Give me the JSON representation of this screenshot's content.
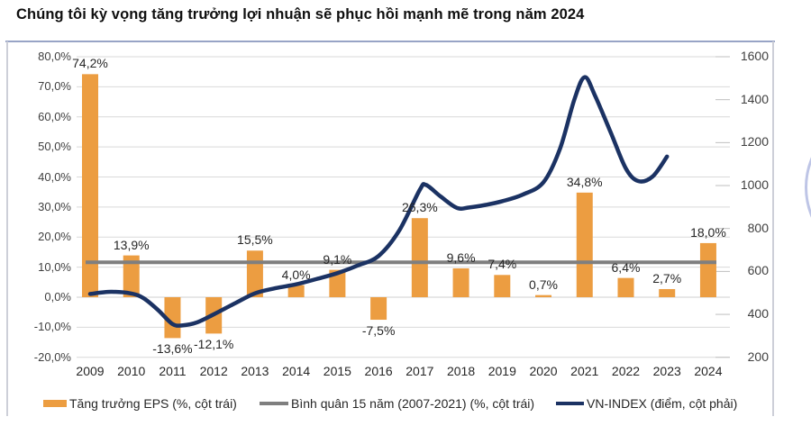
{
  "title": "Chúng tôi kỳ vọng tăng trưởng lợi nhuận sẽ phục hồi mạnh mẽ trong năm 2024",
  "colors": {
    "bar": "#ec9d41",
    "average_line": "#7f7f7f",
    "vn_index_line": "#1b3263",
    "gridline": "#d9d9d9",
    "zero_line": "#cfcfcf",
    "right_tick": "#bfbfbf",
    "axis_text": "#3f3f3f",
    "label_text": "#262626"
  },
  "chart_data": {
    "type": "combo-bar-line",
    "title": "Chúng tôi kỳ vọng tăng trưởng lợi nhuận sẽ phục hồi mạnh mẽ trong năm 2024",
    "categories": [
      "2009",
      "2010",
      "2011",
      "2012",
      "2013",
      "2014",
      "2015",
      "2016",
      "2017",
      "2018",
      "2019",
      "2020",
      "2021",
      "2022",
      "2023",
      "2024"
    ],
    "series": [
      {
        "name": "Tăng trưởng EPS (%, cột trái)",
        "type": "bar",
        "axis": "left",
        "values": [
          74.2,
          13.9,
          -13.6,
          -12.1,
          15.5,
          4.0,
          9.1,
          -7.5,
          26.3,
          9.6,
          7.4,
          0.7,
          34.8,
          6.4,
          2.7,
          18.0
        ],
        "labels": [
          "74,2%",
          "13,9%",
          "-13,6%",
          "-12,1%",
          "15,5%",
          "4,0%",
          "9,1%",
          "-7,5%",
          "26,3%",
          "9,6%",
          "7,4%",
          "0,7%",
          "34,8%",
          "6,4%",
          "2,7%",
          "18,0%"
        ]
      },
      {
        "name": "Bình quân 15 năm (2007-2021) (%, cột trái)",
        "type": "constant-line",
        "axis": "left",
        "value": 11.6
      },
      {
        "name": "VN-INDEX (điểm, cột phải)",
        "type": "line",
        "axis": "right",
        "points": [
          [
            2009,
            495
          ],
          [
            2009.5,
            505
          ],
          [
            2010,
            497
          ],
          [
            2010.3,
            475
          ],
          [
            2010.65,
            420
          ],
          [
            2011,
            355
          ],
          [
            2011.25,
            349
          ],
          [
            2011.6,
            363
          ],
          [
            2012,
            400
          ],
          [
            2012.5,
            450
          ],
          [
            2013,
            498
          ],
          [
            2013.5,
            522
          ],
          [
            2014,
            540
          ],
          [
            2014.5,
            565
          ],
          [
            2015,
            592
          ],
          [
            2015.5,
            628
          ],
          [
            2016,
            672
          ],
          [
            2016.5,
            790
          ],
          [
            2017,
            980
          ],
          [
            2017.15,
            1003
          ],
          [
            2017.5,
            950
          ],
          [
            2017.9,
            896
          ],
          [
            2018.2,
            898
          ],
          [
            2018.6,
            910
          ],
          [
            2019,
            927
          ],
          [
            2019.5,
            958
          ],
          [
            2020,
            1015
          ],
          [
            2020.4,
            1170
          ],
          [
            2020.75,
            1400
          ],
          [
            2021,
            1505
          ],
          [
            2021.25,
            1420
          ],
          [
            2021.65,
            1240
          ],
          [
            2022,
            1080
          ],
          [
            2022.3,
            1021
          ],
          [
            2022.65,
            1042
          ],
          [
            2023,
            1135
          ]
        ]
      }
    ],
    "left_axis": {
      "tick_labels": [
        "80,0%",
        "70,0%",
        "60,0%",
        "50,0%",
        "40,0%",
        "30,0%",
        "20,0%",
        "10,0%",
        "0,0%",
        "-10,0%",
        "-20,0%"
      ],
      "tick_values": [
        80,
        70,
        60,
        50,
        40,
        30,
        20,
        10,
        0,
        -10,
        -20
      ],
      "range": [
        -20,
        80
      ]
    },
    "right_axis": {
      "tick_labels": [
        "1600",
        "1400",
        "1200",
        "1000",
        "800",
        "600",
        "400",
        "200"
      ],
      "tick_values": [
        1600,
        1400,
        1200,
        1000,
        800,
        600,
        400,
        200
      ],
      "range": [
        200,
        1600
      ]
    },
    "grid": true,
    "legend_position": "bottom"
  }
}
